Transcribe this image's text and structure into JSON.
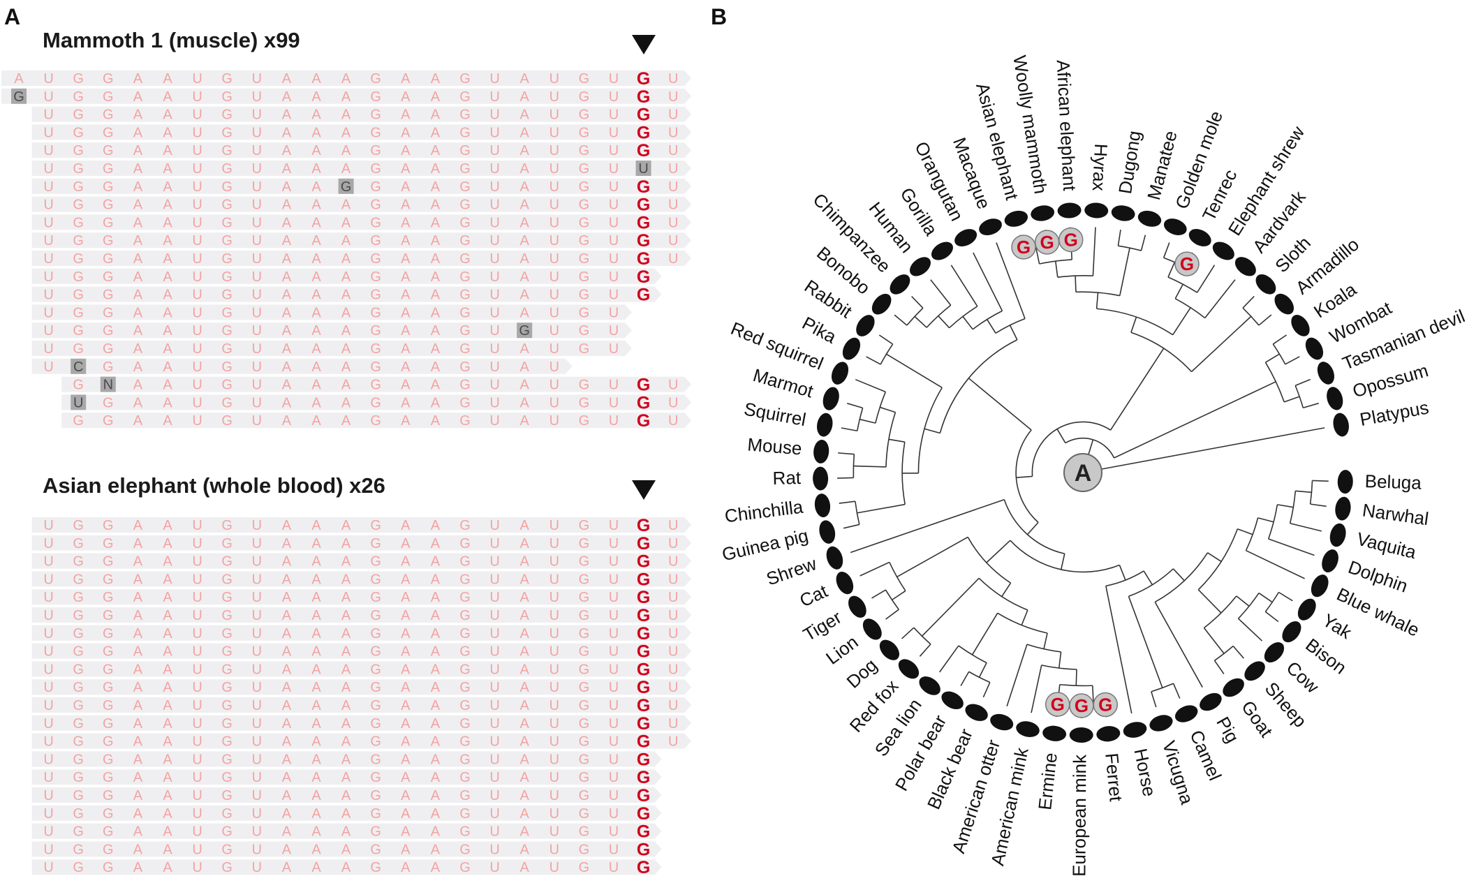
{
  "panel_a": {
    "letter": "A",
    "reference": "AUGGAAUGUAAAGAAGUAUGUGU",
    "edit_column": 21,
    "colors": {
      "base": "#f3a3a3",
      "edited": "#d0021b",
      "mismatch_bg": "#a8a8a8",
      "mismatch_text": "#4a4a4a",
      "read_bg": "#efeff1"
    },
    "groups": [
      {
        "title": "Mammoth 1 (muscle) x99",
        "reads": [
          {
            "start": 0,
            "seq": "AUGGAAUGUAAAGAAGUAUGUGU",
            "mismatches": []
          },
          {
            "start": 0,
            "seq": "GUGGAAUGUAAAGAAGUAUGUGU",
            "mismatches": [
              0
            ]
          },
          {
            "start": 1,
            "seq": "UGGAAUGUAAAGAAGUAUGUGU",
            "mismatches": []
          },
          {
            "start": 1,
            "seq": "UGGAAUGUAAAGAAGUAUGUGU",
            "mismatches": []
          },
          {
            "start": 1,
            "seq": "UGGAAUGUAAAGAAGUAUGUGU",
            "mismatches": []
          },
          {
            "start": 1,
            "seq": "UGGAAUGUAAAGAAGUAUGUUU",
            "mismatches": [
              21
            ]
          },
          {
            "start": 1,
            "seq": "UGGAAUGUAAGGAAGUAUGUGU",
            "mismatches": [
              11
            ]
          },
          {
            "start": 1,
            "seq": "UGGAAUGUAAAGAAGUAUGUGU",
            "mismatches": []
          },
          {
            "start": 1,
            "seq": "UGGAAUGUAAAGAAGUAUGUGU",
            "mismatches": []
          },
          {
            "start": 1,
            "seq": "UGGAAUGUAAAGAAGUAUGUGU",
            "mismatches": []
          },
          {
            "start": 1,
            "seq": "UGGAAUGUAAAGAAGUAUGUGU",
            "mismatches": []
          },
          {
            "start": 1,
            "seq": "UGGAAUGUAAAGAAGUAUGUG",
            "mismatches": []
          },
          {
            "start": 1,
            "seq": "UGGAAUGUAAAGAAGUAUGUG",
            "mismatches": []
          },
          {
            "start": 1,
            "seq": "UGGAAUGUAAAGAAGUAUGU",
            "mismatches": []
          },
          {
            "start": 1,
            "seq": "UGGAAUGUAAAGAAGUGUGU",
            "mismatches": [
              17
            ]
          },
          {
            "start": 1,
            "seq": "UGGAAUGUAAAGAAGUAUGU",
            "mismatches": []
          },
          {
            "start": 1,
            "seq": "UCGAAUGUAAAGAAGUAU",
            "mismatches": [
              2
            ]
          },
          {
            "start": 2,
            "seq": "GNAAUGUAAAGAAGUAUGUGU",
            "mismatches": [
              3
            ]
          },
          {
            "start": 2,
            "seq": "UGAAUGUAAAGAAGUAUGUGU",
            "mismatches": [
              2
            ]
          },
          {
            "start": 2,
            "seq": "GGAAUGUAAAGAAGUAUGUGU",
            "mismatches": []
          }
        ]
      },
      {
        "title": "Asian elephant (whole blood) x26",
        "reads": [
          {
            "start": 1,
            "seq": "UGGAAUGUAAAGAAGUAUGUGU",
            "mismatches": []
          },
          {
            "start": 1,
            "seq": "UGGAAUGUAAAGAAGUAUGUGU",
            "mismatches": []
          },
          {
            "start": 1,
            "seq": "UGGAAUGUAAAGAAGUAUGUGU",
            "mismatches": []
          },
          {
            "start": 1,
            "seq": "UGGAAUGUAAAGAAGUAUGUGU",
            "mismatches": []
          },
          {
            "start": 1,
            "seq": "UGGAAUGUAAAGAAGUAUGUGU",
            "mismatches": []
          },
          {
            "start": 1,
            "seq": "UGGAAUGUAAAGAAGUAUGUGU",
            "mismatches": []
          },
          {
            "start": 1,
            "seq": "UGGAAUGUAAAGAAGUAUGUGU",
            "mismatches": []
          },
          {
            "start": 1,
            "seq": "UGGAAUGUAAAGAAGUAUGUGU",
            "mismatches": []
          },
          {
            "start": 1,
            "seq": "UGGAAUGUAAAGAAGUAUGUGU",
            "mismatches": []
          },
          {
            "start": 1,
            "seq": "UGGAAUGUAAAGAAGUAUGUGU",
            "mismatches": []
          },
          {
            "start": 1,
            "seq": "UGGAAUGUAAAGAAGUAUGUGU",
            "mismatches": []
          },
          {
            "start": 1,
            "seq": "UGGAAUGUAAAGAAGUAUGUGU",
            "mismatches": []
          },
          {
            "start": 1,
            "seq": "UGGAAUGUAAAGAAGUAUGUGU",
            "mismatches": []
          },
          {
            "start": 1,
            "seq": "UGGAAUGUAAAGAAGUAUGUG",
            "mismatches": []
          },
          {
            "start": 1,
            "seq": "UGGAAUGUAAAGAAGUAUGUG",
            "mismatches": []
          },
          {
            "start": 1,
            "seq": "UGGAAUGUAAAGAAGUAUGUG",
            "mismatches": []
          },
          {
            "start": 1,
            "seq": "UGGAAUGUAAAGAAGUAUGUG",
            "mismatches": []
          },
          {
            "start": 1,
            "seq": "UGGAAUGUAAAGAAGUAUGUG",
            "mismatches": []
          },
          {
            "start": 1,
            "seq": "UGGAAUGUAAAGAAGUAUGUG",
            "mismatches": []
          },
          {
            "start": 1,
            "seq": "UGGAAUGUAAAGAAGUAUGUG",
            "mismatches": []
          }
        ]
      }
    ]
  },
  "panel_b": {
    "letter": "B",
    "root_state": "A",
    "derived_state": "G",
    "g_marked_leaves": [
      "Asian elephant",
      "Woolly mammoth",
      "African elephant",
      "Tenrec",
      "Ermine",
      "European mink",
      "Ferret"
    ],
    "icon": "animal-silhouette-icon",
    "colors": {
      "marker_bg": "#c8c8c8",
      "marker_g": "#d0021b",
      "line": "#333333"
    },
    "tree": [
      [
        [
          [
            [
              [
                [
                  [
                    [
                      [
                        [
                          [
                            [
                              "Beluga",
                              "Narwhal"
                            ],
                            "Vaquita"
                          ],
                          "Dolphin"
                        ],
                        "Blue whale"
                      ],
                      [
                        [
                          [
                            "Yak",
                            "Bison"
                          ],
                          "Cow"
                        ],
                        [
                          "Sheep",
                          "Goat"
                        ]
                      ]
                    ],
                    "Pig"
                  ],
                  [
                    "Camel",
                    "Vicugna"
                  ]
                ],
                "Horse"
              ],
              [
                [
                  [
                    [
                      [
                        [
                          [
                            "Ferret",
                            "European mink"
                          ],
                          "Ermine"
                        ],
                        "American mink"
                      ],
                      "American otter"
                    ],
                    [
                      [
                        "Black bear",
                        "Polar bear"
                      ],
                      "Sea lion"
                    ]
                  ],
                  [
                    "Red fox",
                    "Dog"
                  ]
                ],
                [
                  [
                    "Lion",
                    "Tiger"
                  ],
                  "Cat"
                ]
              ]
            ],
            "Shrew"
          ],
          [
            [
              [
                [
                  "Guinea pig",
                  "Chinchilla"
                ],
                [
                  [
                    "Rat",
                    "Mouse"
                  ],
                  [
                    [
                      "Squirrel",
                      "Marmot"
                    ],
                    "Red squirrel"
                  ]
                ]
              ],
              [
                "Pika",
                "Rabbit"
              ]
            ],
            [
              [
                [
                  [
                    [
                      "Bonobo",
                      "Chimpanzee"
                    ],
                    "Human"
                  ],
                  "Gorilla"
                ],
                "Orangutan"
              ],
              "Macaque"
            ]
          ]
        ],
        [
          [
            [
              [
                [
                  [
                    "Asian elephant",
                    "Woolly mammoth"
                  ],
                  "African elephant"
                ],
                "Hyrax"
              ],
              [
                "Dugong",
                "Manatee"
              ]
            ],
            [
              [
                [
                  "Golden mole",
                  "Tenrec"
                ],
                "Elephant shrew"
              ],
              "Aardvark"
            ]
          ],
          [
            "Sloth",
            "Armadillo"
          ]
        ]
      ],
      [
        [
          "Koala",
          "Wombat"
        ],
        [
          "Tasmanian devil",
          "Opossum"
        ]
      ]
    ],
    "outgroup": "Platypus"
  }
}
